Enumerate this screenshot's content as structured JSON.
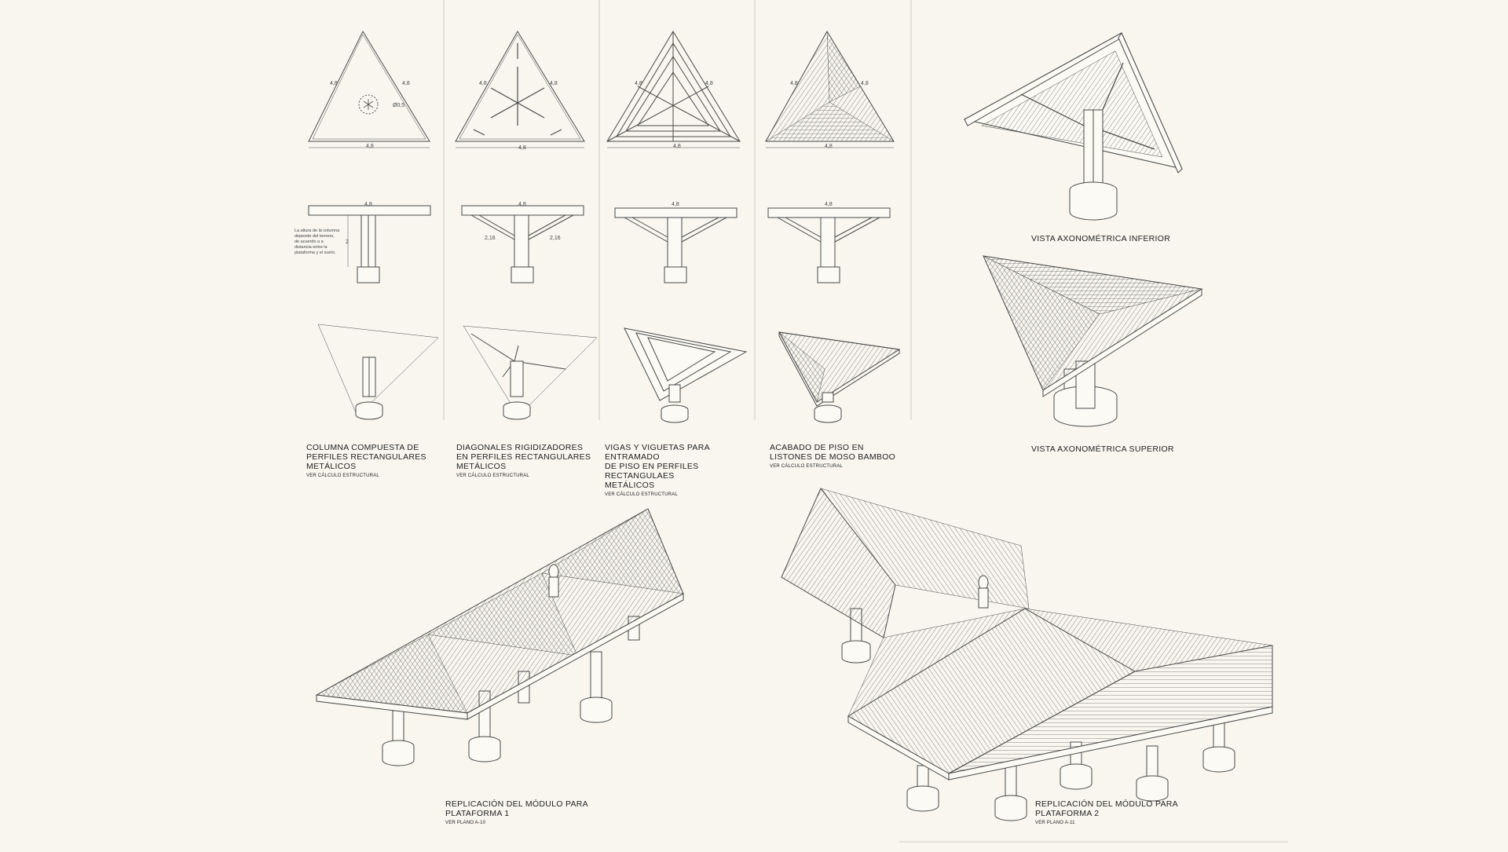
{
  "colors": {
    "background": "#f8f6ef",
    "line": "#4a4a4a",
    "fill": "#fbfaf5"
  },
  "dimensions": {
    "side": "4,8",
    "diameter": "Ø0,5",
    "column_height": "2",
    "diagonal": "2,16"
  },
  "note_column": "La altura de la columna\ndepende del terreno,\nde acuerdo a a\ndistancia entre la\nplataforma y el suelo.",
  "columns": [
    {
      "title": "COLUMNA COMPUESTA DE\nPERFILES RECTANGULARES\nMETÁLICOS",
      "subtitle": "VER CÁLCULO ESTRUCTURAL"
    },
    {
      "title": "DIAGONALES RIGIDIZADORES\nEN PERFILES RECTANGULARES\nMETÁLICOS",
      "subtitle": "VER CÁLCULO ESTRUCTURAL"
    },
    {
      "title": "VIGAS Y VIGUETAS PARA ENTRAMADO\nDE PISO EN PERFILES RECTANGULAES\nMETÁLICOS",
      "subtitle": "VER CÁLCULO ESTRUCTURAL"
    },
    {
      "title": "ACABADO DE PISO EN\nLISTONES DE MOSO BAMBOO",
      "subtitle": "VER CÁLCULO ESTRUCTURAL"
    }
  ],
  "views": {
    "axon_inferior": "VISTA AXONOMÉTRICA INFERIOR",
    "axon_superior": "VISTA AXONOMÉTRICA SUPERIOR"
  },
  "platforms": [
    {
      "title": "REPLICACIÓN DEL MÓDULO PARA\nPLATAFORMA 1",
      "subtitle": "VER PLANO A-10"
    },
    {
      "title": "REPLICACIÓN DEL MÓDULO PARA\nPLATAFORMA 2",
      "subtitle": "VER PLANO A-11"
    }
  ]
}
